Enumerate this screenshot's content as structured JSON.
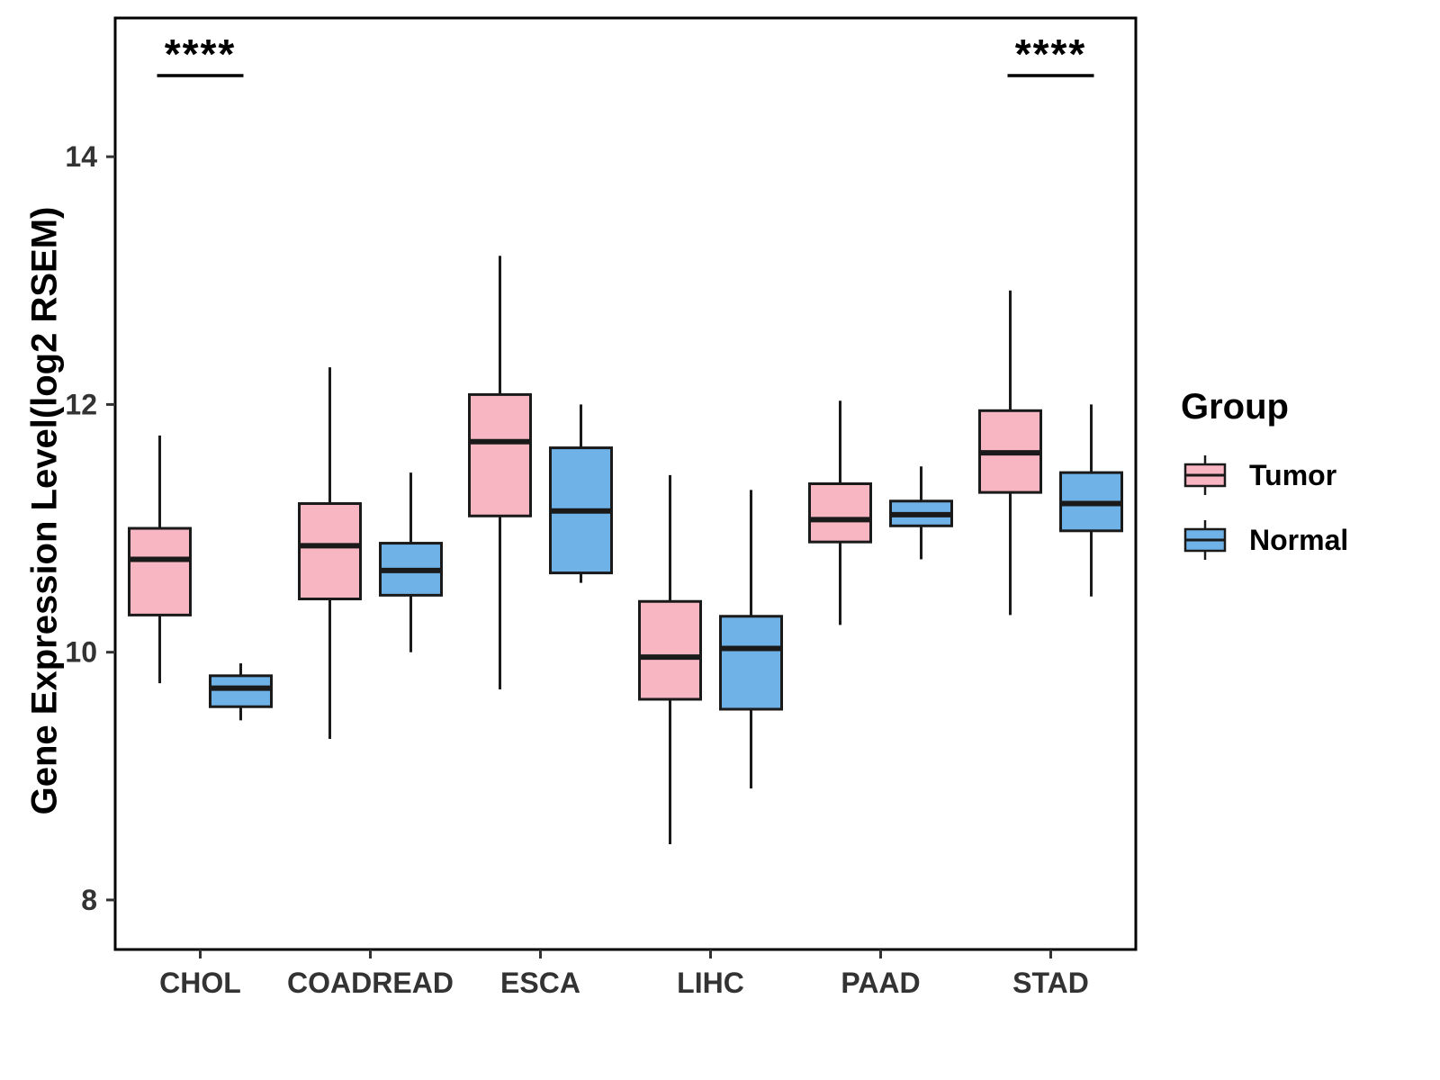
{
  "chart_data": {
    "type": "boxplot",
    "title": "",
    "xlabel": "",
    "ylabel": "Gene Expression Level(log2 RSEM)",
    "ylim": [
      7.6,
      15.12
    ],
    "yticks": [
      8,
      10,
      12,
      14
    ],
    "grid": false,
    "categories": [
      "CHOL",
      "COADREAD",
      "ESCA",
      "LIHC",
      "PAAD",
      "STAD"
    ],
    "legend": {
      "title": "Group",
      "position": "right",
      "entries": [
        {
          "label": "Tumor",
          "color": "#F8B5C2"
        },
        {
          "label": "Normal",
          "color": "#6FB2E8"
        }
      ]
    },
    "series": [
      {
        "name": "Tumor",
        "color": "#F8B5C2",
        "boxes": [
          {
            "category": "CHOL",
            "low": 9.75,
            "q1": 10.3,
            "median": 10.75,
            "q3": 11.0,
            "high": 11.75
          },
          {
            "category": "COADREAD",
            "low": 9.3,
            "q1": 10.43,
            "median": 10.86,
            "q3": 11.2,
            "high": 12.3
          },
          {
            "category": "ESCA",
            "low": 9.7,
            "q1": 11.1,
            "median": 11.7,
            "q3": 12.08,
            "high": 13.2
          },
          {
            "category": "LIHC",
            "low": 8.45,
            "q1": 9.62,
            "median": 9.96,
            "q3": 10.41,
            "high": 11.43
          },
          {
            "category": "PAAD",
            "low": 10.22,
            "q1": 10.89,
            "median": 11.07,
            "q3": 11.36,
            "high": 12.03
          },
          {
            "category": "STAD",
            "low": 10.3,
            "q1": 11.29,
            "median": 11.61,
            "q3": 11.95,
            "high": 12.92
          }
        ]
      },
      {
        "name": "Normal",
        "color": "#6FB2E8",
        "boxes": [
          {
            "category": "CHOL",
            "low": 9.45,
            "q1": 9.56,
            "median": 9.71,
            "q3": 9.81,
            "high": 9.91
          },
          {
            "category": "COADREAD",
            "low": 10.0,
            "q1": 10.46,
            "median": 10.66,
            "q3": 10.88,
            "high": 11.45
          },
          {
            "category": "ESCA",
            "low": 10.56,
            "q1": 10.64,
            "median": 11.14,
            "q3": 11.65,
            "high": 12.0
          },
          {
            "category": "LIHC",
            "low": 8.9,
            "q1": 9.54,
            "median": 10.03,
            "q3": 10.29,
            "high": 11.31
          },
          {
            "category": "PAAD",
            "low": 10.75,
            "q1": 11.02,
            "median": 11.11,
            "q3": 11.22,
            "high": 11.5
          },
          {
            "category": "STAD",
            "low": 10.45,
            "q1": 10.98,
            "median": 11.2,
            "q3": 11.45,
            "high": 12.0
          }
        ]
      }
    ],
    "annotations": [
      {
        "category": "CHOL",
        "text": "****"
      },
      {
        "category": "STAD",
        "text": "****"
      }
    ]
  }
}
